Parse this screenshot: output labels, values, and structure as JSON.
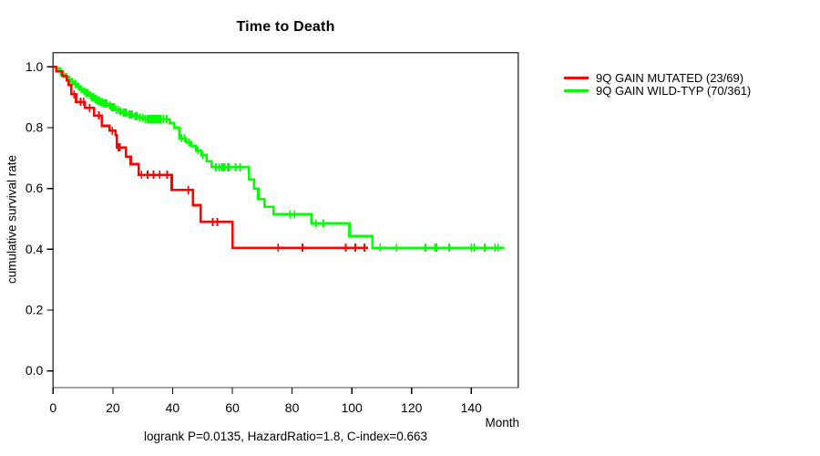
{
  "title": "Time to Death",
  "y_axis_label": "cumulative survival rate",
  "x_axis_label": "Month",
  "caption": "logrank P=0.0135, HazardRatio=1.8, C-index=0.663",
  "legend": {
    "items": [
      {
        "label": "9Q GAIN MUTATED (23/69)",
        "color": "#ff0000"
      },
      {
        "label": "9Q GAIN WILD-TYP (70/361)",
        "color": "#00ff00"
      }
    ]
  },
  "colors": {
    "mutated": "#ff0000",
    "wildtype": "#00ff00",
    "axis": "#444444",
    "text": "#000000"
  },
  "chart_data": {
    "type": "line",
    "subtype": "kaplan-meier-step",
    "title": "Time to Death",
    "xlabel": "Month",
    "ylabel": "cumulative survival rate",
    "xlim": [
      0,
      155
    ],
    "ylim": [
      0.0,
      1.0
    ],
    "xticks": [
      0,
      20,
      40,
      60,
      80,
      100,
      120,
      140
    ],
    "yticks": [
      0.0,
      0.2,
      0.4,
      0.6,
      0.8,
      1.0
    ],
    "grid": false,
    "legend_position": "right-outside",
    "series": [
      {
        "name": "9Q GAIN MUTATED (23/69)",
        "color": "#ff0000",
        "steps": [
          [
            0,
            1.0
          ],
          [
            1,
            0.985
          ],
          [
            3,
            0.97
          ],
          [
            4.6,
            0.955
          ],
          [
            5.2,
            0.94
          ],
          [
            6.1,
            0.91
          ],
          [
            7.7,
            0.885
          ],
          [
            10.7,
            0.865
          ],
          [
            13.7,
            0.84
          ],
          [
            16.3,
            0.806
          ],
          [
            18.9,
            0.79
          ],
          [
            20.9,
            0.775
          ],
          [
            21.3,
            0.735
          ],
          [
            24.4,
            0.705
          ],
          [
            26,
            0.68
          ],
          [
            28.6,
            0.645
          ],
          [
            39.7,
            0.595
          ],
          [
            46.8,
            0.545
          ],
          [
            49.4,
            0.49
          ],
          [
            60.1,
            0.405
          ]
        ],
        "end_month": 105.5,
        "censor_ticks": [
          7.0,
          9.2,
          10.2,
          12.2,
          15.3,
          19.8,
          21.9,
          22.4,
          29.6,
          31.6,
          33.6,
          35.7,
          38.2,
          45.3,
          53.4,
          55.0,
          75.3,
          83.5,
          98.0,
          101.2,
          104.2
        ]
      },
      {
        "name": "9Q GAIN WILD-TYP (70/361)",
        "color": "#00ff00",
        "steps": [
          [
            0,
            1.0
          ],
          [
            1,
            0.995
          ],
          [
            2,
            0.985
          ],
          [
            3,
            0.975
          ],
          [
            4,
            0.967
          ],
          [
            5,
            0.958
          ],
          [
            6,
            0.95
          ],
          [
            7,
            0.944
          ],
          [
            8,
            0.935
          ],
          [
            9,
            0.926
          ],
          [
            10,
            0.92
          ],
          [
            11,
            0.914
          ],
          [
            12,
            0.906
          ],
          [
            13,
            0.9
          ],
          [
            14,
            0.894
          ],
          [
            15,
            0.889
          ],
          [
            16,
            0.884
          ],
          [
            17,
            0.879
          ],
          [
            18.5,
            0.873
          ],
          [
            19.5,
            0.868
          ],
          [
            21,
            0.859
          ],
          [
            22,
            0.854
          ],
          [
            23,
            0.849
          ],
          [
            25,
            0.843
          ],
          [
            27,
            0.838
          ],
          [
            29,
            0.833
          ],
          [
            30.5,
            0.828
          ],
          [
            39,
            0.815
          ],
          [
            40.5,
            0.8
          ],
          [
            42.3,
            0.765
          ],
          [
            44.5,
            0.752
          ],
          [
            46.2,
            0.74
          ],
          [
            47.9,
            0.725
          ],
          [
            49.6,
            0.71
          ],
          [
            51.4,
            0.69
          ],
          [
            53,
            0.67
          ],
          [
            65.6,
            0.63
          ],
          [
            67.2,
            0.6
          ],
          [
            68.7,
            0.565
          ],
          [
            70.7,
            0.54
          ],
          [
            73.8,
            0.515
          ],
          [
            86.5,
            0.485
          ],
          [
            99.2,
            0.443
          ],
          [
            106.9,
            0.405
          ]
        ],
        "end_month": 151,
        "censor_ticks": [
          2.5,
          3.5,
          4.5,
          5.5,
          6.5,
          7.5,
          8.5,
          9.5,
          10.5,
          11.0,
          11.5,
          12.5,
          13.0,
          13.5,
          14.0,
          14.5,
          15.0,
          15.5,
          16.0,
          16.5,
          17.0,
          17.5,
          18.0,
          19.0,
          19.5,
          20.0,
          20.5,
          21.2,
          21.8,
          22.5,
          23.5,
          24.0,
          24.5,
          25.5,
          26.0,
          26.5,
          27.5,
          28.0,
          29.0,
          30.0,
          30.8,
          31.5,
          32.0,
          32.5,
          33.0,
          33.5,
          34.0,
          34.5,
          35.0,
          35.5,
          36.0,
          37.0,
          38.0,
          43.0,
          44.0,
          45.5,
          48.5,
          50.0,
          54.5,
          55.5,
          56.5,
          57.0,
          57.5,
          58.5,
          59.0,
          61.1,
          62.6,
          79.3,
          80.8,
          88.0,
          90.5,
          109.5,
          115.0,
          124.7,
          127.8,
          128.3,
          132.6,
          140.0,
          141.0,
          144.5,
          147.9,
          149.0
        ]
      }
    ]
  }
}
